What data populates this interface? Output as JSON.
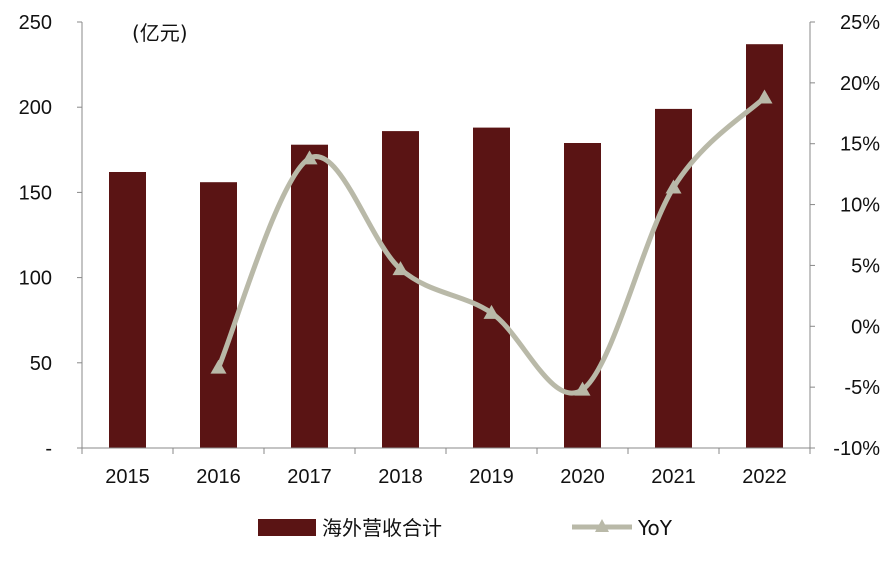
{
  "chart_data": {
    "type": "bar",
    "unit_label": "(亿元)",
    "categories": [
      "2015",
      "2016",
      "2017",
      "2018",
      "2019",
      "2020",
      "2021",
      "2022"
    ],
    "series": [
      {
        "name": "海外营收合计",
        "type": "bar",
        "axis": "left",
        "color": "#5a1414",
        "values": [
          162,
          156,
          178,
          186,
          188,
          179,
          199,
          237
        ]
      },
      {
        "name": "YoY",
        "type": "line",
        "axis": "right",
        "color": "#b9b9a8",
        "marker": "triangle",
        "values": [
          null,
          -3.4,
          13.8,
          4.7,
          1.1,
          -5.2,
          11.4,
          18.8
        ]
      }
    ],
    "y_left": {
      "range": [
        0,
        250
      ],
      "ticks": [
        0,
        50,
        100,
        150,
        200,
        250
      ],
      "tick_labels": [
        "-",
        "50",
        "100",
        "150",
        "200",
        "250"
      ]
    },
    "y_right": {
      "range": [
        -10,
        25
      ],
      "ticks": [
        -10,
        -5,
        0,
        5,
        10,
        15,
        20,
        25
      ],
      "tick_labels": [
        "-10%",
        "-5%",
        "0%",
        "5%",
        "10%",
        "15%",
        "20%",
        "25%"
      ]
    },
    "legend": {
      "position": "bottom"
    },
    "grid": false
  }
}
